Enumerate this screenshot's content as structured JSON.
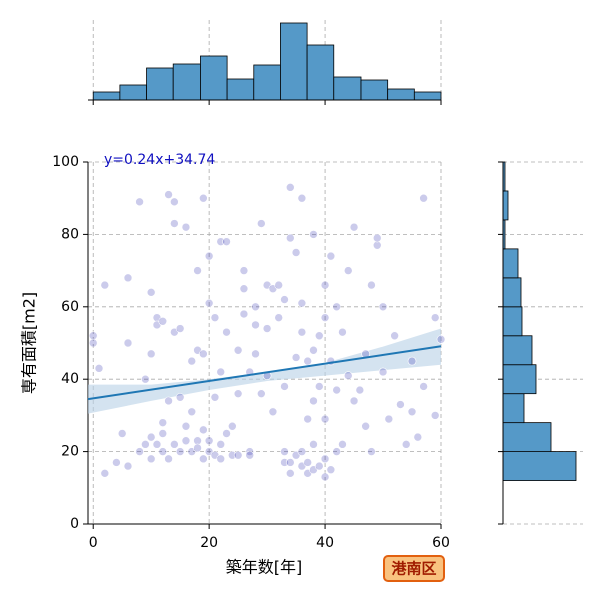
{
  "chart_data": [
    {
      "type": "scatter",
      "annotation": "y=0.24x+34.74",
      "xlabel": "築年数[年]",
      "ylabel": "専有面積[m2]",
      "color": "#3030b0",
      "grid": true,
      "xlim": [
        -0.9,
        60
      ],
      "ylim": [
        0,
        100
      ],
      "xticks": [
        0,
        20,
        40,
        60
      ],
      "yticks": [
        0,
        20,
        40,
        60,
        80,
        100
      ],
      "x": [
        0,
        0,
        1,
        2,
        2,
        4,
        5,
        6,
        6,
        6,
        8,
        8,
        9,
        9,
        10,
        10,
        10,
        10,
        11,
        11,
        11,
        12,
        12,
        12,
        12,
        13,
        13,
        13,
        14,
        14,
        14,
        14,
        15,
        15,
        15,
        16,
        16,
        16,
        17,
        17,
        17,
        18,
        18,
        18,
        18,
        19,
        19,
        19,
        19,
        20,
        20,
        20,
        20,
        21,
        21,
        21,
        22,
        22,
        22,
        22,
        23,
        23,
        23,
        24,
        24,
        25,
        25,
        25,
        26,
        26,
        26,
        27,
        27,
        27,
        28,
        28,
        28,
        29,
        29,
        30,
        30,
        30,
        31,
        31,
        32,
        32,
        33,
        33,
        33,
        33,
        34,
        34,
        34,
        34,
        35,
        35,
        35,
        36,
        36,
        36,
        36,
        36,
        37,
        37,
        37,
        37,
        38,
        38,
        38,
        38,
        38,
        39,
        39,
        39,
        40,
        40,
        40,
        40,
        40,
        41,
        41,
        41,
        42,
        42,
        42,
        43,
        43,
        44,
        44,
        45,
        45,
        46,
        47,
        47,
        48,
        48,
        49,
        49,
        50,
        50,
        51,
        52,
        53,
        54,
        55,
        55,
        56,
        57,
        57,
        59,
        59,
        60
      ],
      "values": [
        52,
        50,
        43,
        66,
        14,
        17,
        25,
        16,
        68,
        50,
        89,
        20,
        22,
        40,
        24,
        18,
        64,
        47,
        57,
        55,
        22,
        28,
        20,
        25,
        56,
        91,
        34,
        18,
        89,
        22,
        53,
        83,
        35,
        20,
        54,
        82,
        23,
        27,
        20,
        31,
        45,
        70,
        48,
        23,
        21,
        18,
        26,
        90,
        47,
        20,
        23,
        74,
        61,
        35,
        19,
        57,
        78,
        18,
        22,
        42,
        25,
        78,
        53,
        19,
        27,
        48,
        36,
        19,
        70,
        65,
        58,
        42,
        20,
        19,
        60,
        55,
        47,
        83,
        36,
        66,
        54,
        41,
        65,
        31,
        66,
        57,
        20,
        17,
        62,
        38,
        93,
        79,
        17,
        14,
        75,
        46,
        19,
        90,
        61,
        53,
        20,
        16,
        45,
        29,
        14,
        17,
        80,
        34,
        22,
        15,
        48,
        52,
        16,
        38,
        66,
        18,
        13,
        29,
        57,
        74,
        15,
        45,
        37,
        20,
        60,
        53,
        22,
        70,
        41,
        82,
        34,
        37,
        27,
        47,
        66,
        20,
        77,
        79,
        42,
        60,
        29,
        52,
        33,
        22,
        31,
        45,
        24,
        90,
        38,
        57,
        30,
        51
      ],
      "regression": {
        "color": "#1f77b4",
        "x": [
          -0.9,
          60
        ],
        "values": [
          34.5,
          49.1
        ],
        "band_x": [
          -0.9,
          10,
          20,
          30,
          40,
          50,
          60
        ],
        "band_lower": [
          30.5,
          34,
          37,
          39.5,
          41,
          42.5,
          44
        ],
        "band_upper": [
          38.5,
          38.5,
          40,
          42,
          44.5,
          49,
          54
        ],
        "band_color": "#b8d0e6"
      }
    },
    {
      "type": "histogram",
      "orientation": "vertical",
      "color": "#5599c8",
      "grid": true,
      "bins": [
        0,
        4.6,
        9.2,
        13.8,
        18.5,
        23.1,
        27.7,
        32.3,
        36.9,
        41.5,
        46.2,
        50.8,
        55.4,
        60
      ],
      "counts": [
        8,
        15,
        32,
        36,
        44,
        21,
        35,
        77,
        55,
        23,
        20,
        11,
        8
      ],
      "xlim": [
        -0.9,
        60
      ],
      "xticks": [
        0,
        20,
        40,
        60
      ],
      "ylim": [
        0,
        80
      ]
    },
    {
      "type": "histogram",
      "orientation": "horizontal",
      "color": "#5599c8",
      "grid": true,
      "bins": [
        12,
        20,
        28,
        36,
        44,
        52,
        60,
        68,
        76,
        84,
        92,
        100
      ],
      "counts": [
        73,
        48,
        21,
        33,
        29,
        19,
        18,
        15,
        2,
        5,
        2
      ],
      "ylim": [
        0,
        100
      ],
      "yticks": [
        0,
        20,
        40,
        60,
        80,
        100
      ],
      "xlim": [
        0,
        80
      ]
    }
  ],
  "badge": "港南区"
}
